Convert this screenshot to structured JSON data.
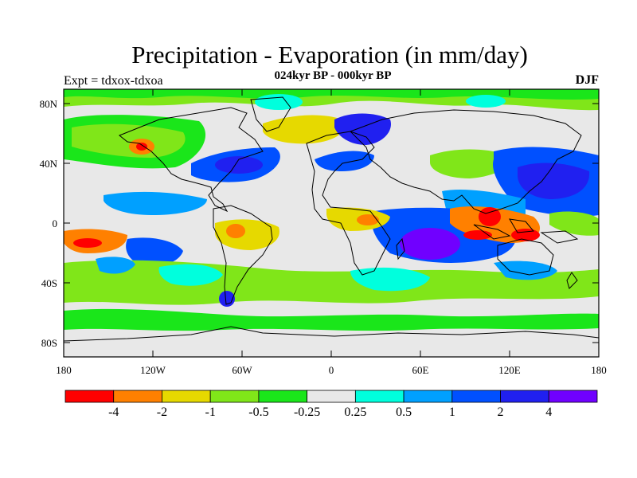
{
  "title": "Precipitation - Evaporation (in mm/day)",
  "subtitle": "024kyr BP - 000kyr BP",
  "left_label": "Expt = tdxox-tdxoa",
  "right_label": "DJF",
  "colors": {
    "background": "#e8e8e8",
    "coastline": "#000000"
  },
  "axes": {
    "y_ticks": [
      "80N",
      "40N",
      "0",
      "40S",
      "80S"
    ],
    "x_ticks": [
      "180",
      "120W",
      "60W",
      "0",
      "60E",
      "120E",
      "180"
    ]
  },
  "colorbar": {
    "colors": [
      "#ff0000",
      "#ff8000",
      "#e6d900",
      "#80e619",
      "#1ae61a",
      "#e8e8e8",
      "#00ffdd",
      "#00a0ff",
      "#0050ff",
      "#2020f0",
      "#7000ff"
    ],
    "labels": [
      "-4",
      "-2",
      "-1",
      "-0.5",
      "-0.25",
      "0.25",
      "0.5",
      "1",
      "2",
      "4"
    ]
  }
}
